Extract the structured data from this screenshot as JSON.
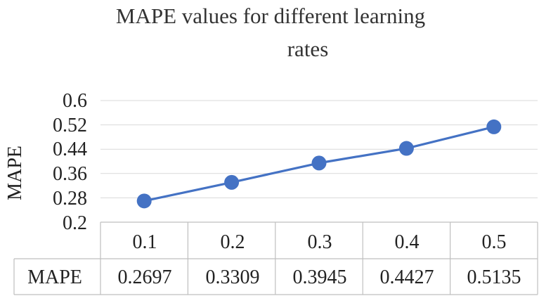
{
  "chart_data": {
    "type": "line",
    "title_lines": [
      "MAPE values for different learning",
      "rates"
    ],
    "ylabel": "MAPE",
    "xlabel": "",
    "categories": [
      "0.1",
      "0.2",
      "0.3",
      "0.4",
      "0.5"
    ],
    "series": [
      {
        "name": "MAPE",
        "values": [
          0.2697,
          0.3309,
          0.3945,
          0.4427,
          0.5135
        ],
        "value_labels": [
          "0.2697",
          "0.3309",
          "0.3945",
          "0.4427",
          "0.5135"
        ]
      }
    ],
    "ylim": [
      0.2,
      0.6
    ],
    "yticks": [
      "0.6",
      "0.52",
      "0.44",
      "0.36",
      "0.28",
      "0.2"
    ],
    "ytick_values": [
      0.6,
      0.52,
      0.44,
      0.36,
      0.28,
      0.2
    ],
    "grid": true,
    "data_table": true,
    "colors": {
      "series": "#4472C4",
      "grid": "#d9d9d9",
      "table_border": "#bfbfbf"
    }
  }
}
